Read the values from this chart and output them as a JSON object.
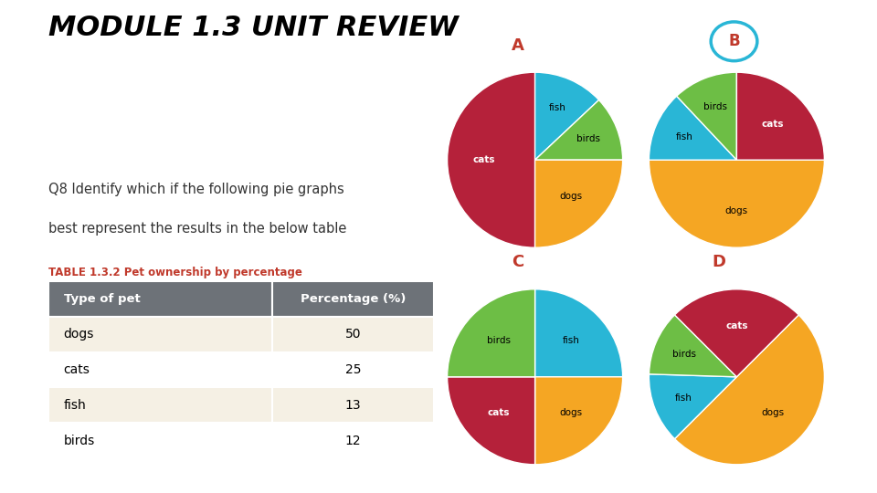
{
  "title": "MODULE 1.3 UNIT REVIEW",
  "question_line1": "Q8 Identify which if the following pie graphs",
  "question_line2": "best represent the results in the below table",
  "table_title": "TABLE 1.3.2 Pet ownership by percentage",
  "table_header": [
    "Type of pet",
    "Percentage (%)"
  ],
  "table_rows": [
    [
      "dogs",
      "50"
    ],
    [
      "cats",
      "25"
    ],
    [
      "fish",
      "13"
    ],
    [
      "birds",
      "12"
    ]
  ],
  "colors": {
    "cats": "#B5213A",
    "dogs": "#F5A623",
    "fish": "#29B6D6",
    "birds": "#6DBE45"
  },
  "pie_A": {
    "label": "A",
    "sizes": [
      50,
      13,
      12,
      25
    ],
    "labels": [
      "cats",
      "fish",
      "birds",
      "dogs"
    ],
    "startangle": -90,
    "circled": false
  },
  "pie_B": {
    "label": "B",
    "sizes": [
      50,
      13,
      12,
      25
    ],
    "labels": [
      "dogs",
      "fish",
      "birds",
      "cats"
    ],
    "startangle": 0,
    "circled": true
  },
  "pie_C": {
    "label": "C",
    "sizes": [
      25,
      25,
      25,
      25
    ],
    "labels": [
      "fish",
      "dogs",
      "cats",
      "birds"
    ],
    "startangle": 90,
    "circled": false
  },
  "pie_D": {
    "label": "D",
    "sizes": [
      50,
      13,
      12,
      25
    ],
    "labels": [
      "dogs",
      "fish",
      "birds",
      "cats"
    ],
    "startangle": 45,
    "circled": false
  },
  "background_color": "#FFFFFF",
  "title_color": "#000000",
  "question_color": "#333333",
  "table_title_color": "#C0392B",
  "label_red": "#C0392B",
  "circle_color_B": "#29B6D6",
  "bar_color": "#29B6D6"
}
